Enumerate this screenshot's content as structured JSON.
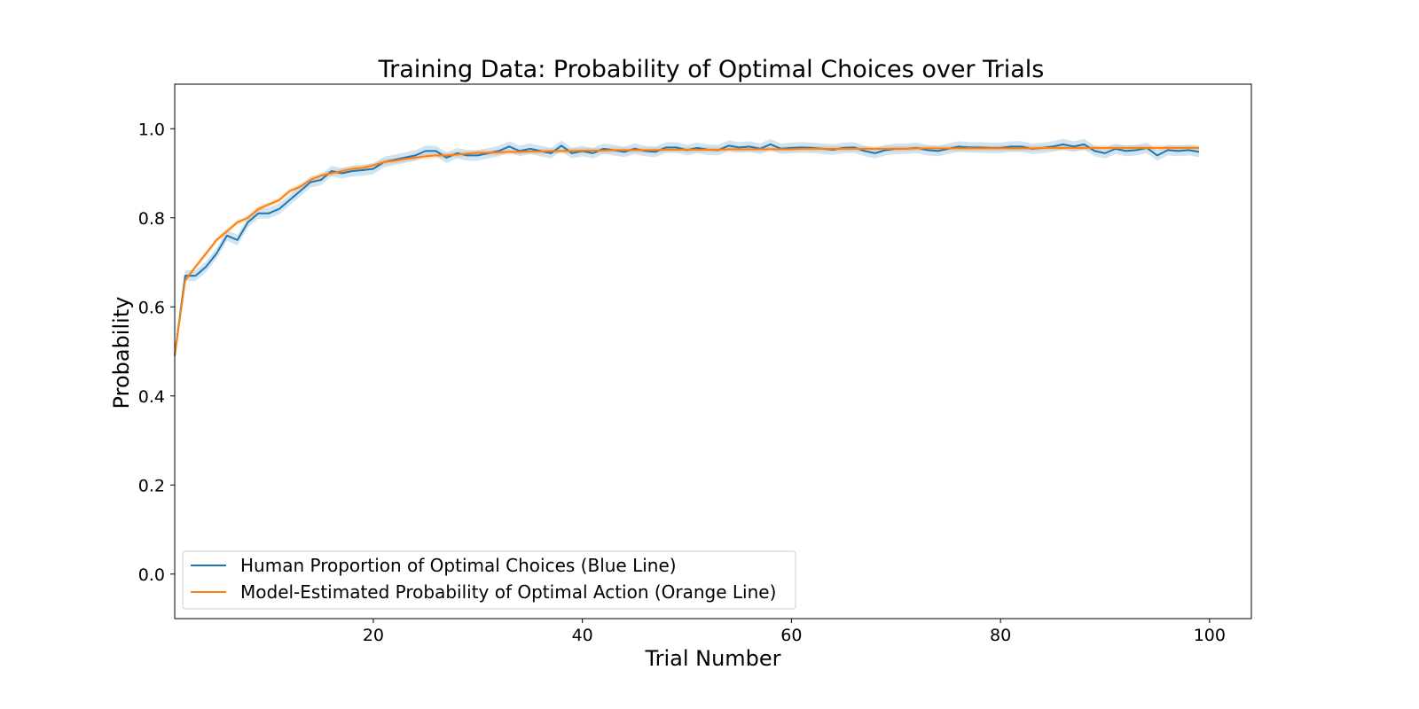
{
  "chart_data": {
    "type": "line",
    "title": "Training Data: Probability of Optimal Choices over Trials",
    "xlabel": "Trial Number",
    "ylabel": "Probability",
    "xlim": [
      1,
      104
    ],
    "ylim": [
      -0.1,
      1.1
    ],
    "xticks": [
      20,
      40,
      60,
      80,
      100
    ],
    "yticks": [
      0.0,
      0.2,
      0.4,
      0.6,
      0.8,
      1.0
    ],
    "grid": false,
    "legend_position": "lower-left",
    "series": [
      {
        "name": "Human Proportion of Optimal Choices (Blue Line)",
        "color": "#1f77b4",
        "band_color": "#1f77b4",
        "x": [
          1,
          2,
          3,
          4,
          5,
          6,
          7,
          8,
          9,
          10,
          11,
          12,
          13,
          14,
          15,
          16,
          17,
          18,
          19,
          20,
          21,
          22,
          23,
          24,
          25,
          26,
          27,
          28,
          29,
          30,
          31,
          32,
          33,
          34,
          35,
          36,
          37,
          38,
          39,
          40,
          41,
          42,
          43,
          44,
          45,
          46,
          47,
          48,
          49,
          50,
          51,
          52,
          53,
          54,
          55,
          56,
          57,
          58,
          59,
          60,
          61,
          62,
          63,
          64,
          65,
          66,
          67,
          68,
          69,
          70,
          71,
          72,
          73,
          74,
          75,
          76,
          77,
          78,
          79,
          80,
          81,
          82,
          83,
          84,
          85,
          86,
          87,
          88,
          89,
          90,
          91,
          92,
          93,
          94,
          95,
          96,
          97,
          98,
          99
        ],
        "values": [
          0.49,
          0.67,
          0.67,
          0.69,
          0.72,
          0.76,
          0.75,
          0.79,
          0.81,
          0.81,
          0.82,
          0.84,
          0.86,
          0.88,
          0.885,
          0.905,
          0.9,
          0.905,
          0.907,
          0.91,
          0.925,
          0.93,
          0.935,
          0.94,
          0.95,
          0.95,
          0.935,
          0.945,
          0.94,
          0.94,
          0.945,
          0.95,
          0.96,
          0.95,
          0.955,
          0.95,
          0.945,
          0.962,
          0.945,
          0.95,
          0.945,
          0.955,
          0.952,
          0.948,
          0.955,
          0.95,
          0.948,
          0.958,
          0.958,
          0.952,
          0.957,
          0.953,
          0.952,
          0.962,
          0.958,
          0.96,
          0.955,
          0.965,
          0.955,
          0.957,
          0.958,
          0.957,
          0.955,
          0.953,
          0.957,
          0.958,
          0.95,
          0.945,
          0.952,
          0.955,
          0.955,
          0.957,
          0.952,
          0.95,
          0.955,
          0.96,
          0.958,
          0.958,
          0.957,
          0.957,
          0.96,
          0.96,
          0.955,
          0.957,
          0.96,
          0.965,
          0.96,
          0.965,
          0.95,
          0.945,
          0.955,
          0.95,
          0.952,
          0.957,
          0.94,
          0.952,
          0.95,
          0.952,
          0.948
        ],
        "band": 0.012
      },
      {
        "name": "Model-Estimated Probability of Optimal Action (Orange Line)",
        "color": "#ff7f0e",
        "band_color": "#ff7f0e",
        "x": [
          1,
          2,
          3,
          4,
          5,
          6,
          7,
          8,
          9,
          10,
          11,
          12,
          13,
          14,
          15,
          16,
          17,
          18,
          19,
          20,
          21,
          22,
          23,
          24,
          25,
          26,
          27,
          28,
          29,
          30,
          31,
          32,
          33,
          34,
          35,
          36,
          37,
          38,
          39,
          40,
          41,
          42,
          43,
          44,
          45,
          46,
          47,
          48,
          49,
          50,
          51,
          52,
          53,
          54,
          55,
          56,
          57,
          58,
          59,
          60,
          61,
          62,
          63,
          64,
          65,
          66,
          67,
          68,
          69,
          70,
          71,
          72,
          73,
          74,
          75,
          76,
          77,
          78,
          79,
          80,
          81,
          82,
          83,
          84,
          85,
          86,
          87,
          88,
          89,
          90,
          91,
          92,
          93,
          94,
          95,
          96,
          97,
          98,
          99
        ],
        "values": [
          0.49,
          0.66,
          0.69,
          0.72,
          0.75,
          0.77,
          0.79,
          0.8,
          0.82,
          0.83,
          0.84,
          0.86,
          0.87,
          0.885,
          0.895,
          0.9,
          0.905,
          0.91,
          0.912,
          0.918,
          0.925,
          0.928,
          0.932,
          0.935,
          0.938,
          0.94,
          0.94,
          0.942,
          0.944,
          0.946,
          0.946,
          0.947,
          0.948,
          0.948,
          0.949,
          0.949,
          0.95,
          0.95,
          0.95,
          0.951,
          0.951,
          0.951,
          0.952,
          0.952,
          0.952,
          0.952,
          0.952,
          0.953,
          0.953,
          0.953,
          0.953,
          0.953,
          0.953,
          0.954,
          0.954,
          0.954,
          0.954,
          0.954,
          0.954,
          0.954,
          0.955,
          0.955,
          0.955,
          0.955,
          0.955,
          0.955,
          0.955,
          0.955,
          0.955,
          0.955,
          0.955,
          0.956,
          0.956,
          0.956,
          0.956,
          0.956,
          0.956,
          0.956,
          0.956,
          0.956,
          0.956,
          0.956,
          0.956,
          0.957,
          0.957,
          0.957,
          0.957,
          0.957,
          0.957,
          0.957,
          0.957,
          0.957,
          0.957,
          0.957,
          0.957,
          0.957,
          0.957,
          0.957,
          0.957
        ],
        "band": 0.006
      }
    ]
  }
}
